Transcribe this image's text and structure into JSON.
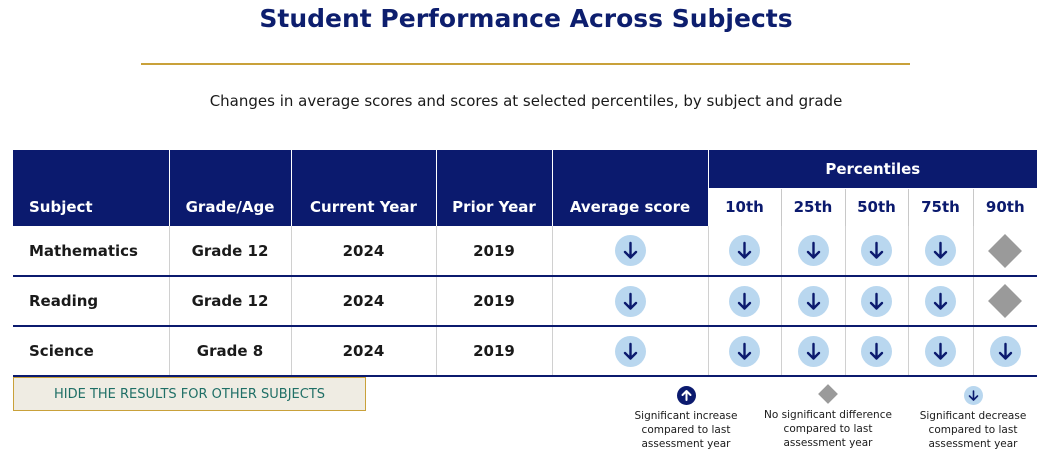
{
  "title": "Student Performance Across Subjects",
  "subtitle": "Changes in average scores and scores at selected percentiles, by subject and grade",
  "table": {
    "headers": {
      "subject": "Subject",
      "grade": "Grade/Age",
      "current_year": "Current Year",
      "prior_year": "Prior Year",
      "average": "Average score",
      "percentiles": "Percentiles",
      "p10": "10th",
      "p25": "25th",
      "p50": "50th",
      "p75": "75th",
      "p90": "90th"
    },
    "rows": [
      {
        "subject": "Mathematics",
        "grade": "Grade 12",
        "current_year": "2024",
        "prior_year": "2019",
        "average": "significant-decrease",
        "p10": "significant-decrease",
        "p25": "significant-decrease",
        "p50": "significant-decrease",
        "p75": "significant-decrease",
        "p90": "no-significant-difference"
      },
      {
        "subject": "Reading",
        "grade": "Grade 12",
        "current_year": "2024",
        "prior_year": "2019",
        "average": "significant-decrease",
        "p10": "significant-decrease",
        "p25": "significant-decrease",
        "p50": "significant-decrease",
        "p75": "significant-decrease",
        "p90": "no-significant-difference"
      },
      {
        "subject": "Science",
        "grade": "Grade 8",
        "current_year": "2024",
        "prior_year": "2019",
        "average": "significant-decrease",
        "p10": "significant-decrease",
        "p25": "significant-decrease",
        "p50": "significant-decrease",
        "p75": "significant-decrease",
        "p90": "significant-decrease"
      }
    ]
  },
  "hide_button": "HIDE THE RESULTS FOR OTHER SUBJECTS",
  "legend": {
    "increase": "Significant increase compared to last assessment year",
    "no_difference": "No significant difference compared to last assessment year",
    "decrease": "Significant decrease compared to last assessment year"
  },
  "colors": {
    "navy": "#0b1a6e",
    "gold": "#c9a13a",
    "decrease_icon_bg": "#b9d7ef",
    "no_difference_icon": "#9a9a9a",
    "button_text": "#1f6f66"
  }
}
